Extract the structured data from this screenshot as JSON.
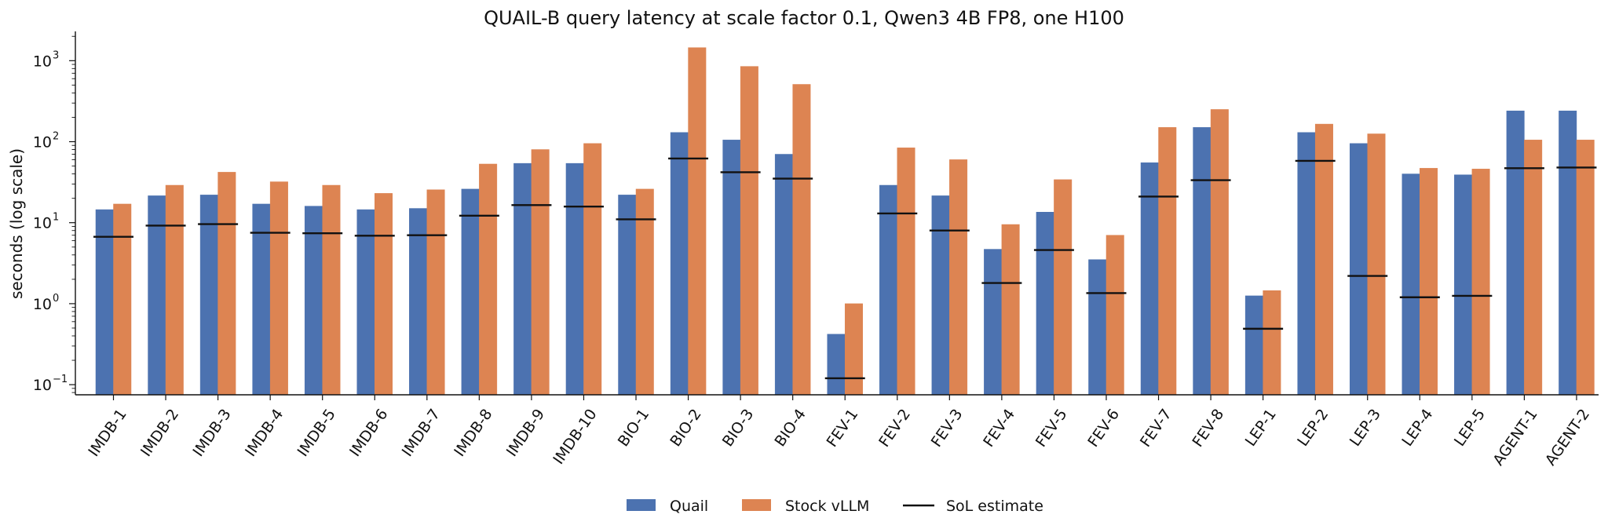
{
  "chart_data": {
    "type": "bar",
    "title": "QUAIL-B query latency at scale factor 0.1, Qwen3 4B FP8, one H100",
    "xlabel": "",
    "ylabel": "seconds (log scale)",
    "yscale": "log",
    "ylim": [
      0.075,
      2300
    ],
    "yticks": [
      {
        "value": 0.1,
        "base": "10",
        "exp": "−1"
      },
      {
        "value": 1,
        "base": "10",
        "exp": "0"
      },
      {
        "value": 10,
        "base": "10",
        "exp": "1"
      },
      {
        "value": 100,
        "base": "10",
        "exp": "2"
      },
      {
        "value": 1000,
        "base": "10",
        "exp": "3"
      }
    ],
    "categories": [
      "IMDB-1",
      "IMDB-2",
      "IMDB-3",
      "IMDB-4",
      "IMDB-5",
      "IMDB-6",
      "IMDB-7",
      "IMDB-8",
      "IMDB-9",
      "IMDB-10",
      "BIO-1",
      "BIO-2",
      "BIO-3",
      "BIO-4",
      "FEV-1",
      "FEV-2",
      "FEV-3",
      "FEV-4",
      "FEV-5",
      "FEV-6",
      "FEV-7",
      "FEV-8",
      "LEP-1",
      "LEP-2",
      "LEP-3",
      "LEP-4",
      "LEP-5",
      "AGENT-1",
      "AGENT-2"
    ],
    "series": [
      {
        "name": "Quail",
        "color": "#4c72b0",
        "values": [
          14.5,
          21.5,
          22,
          17,
          16,
          14.5,
          15,
          26,
          54,
          54,
          22,
          130,
          105,
          70,
          0.42,
          29,
          21.5,
          4.7,
          13.5,
          3.5,
          55,
          150,
          1.25,
          130,
          95,
          40,
          39,
          240,
          240
        ]
      },
      {
        "name": "Stock vLLM",
        "color": "#dd8452",
        "values": [
          17,
          29,
          42,
          32,
          29,
          23,
          25.5,
          53,
          80,
          95,
          26,
          1450,
          850,
          510,
          1.0,
          84,
          60,
          9.5,
          34,
          7,
          150,
          250,
          1.45,
          165,
          125,
          47,
          46,
          105,
          105
        ]
      }
    ],
    "sol_estimate": {
      "name": "SoL estimate",
      "color": "#111111",
      "values": [
        6.7,
        9.2,
        9.6,
        7.5,
        7.4,
        6.9,
        7.0,
        12.2,
        16.5,
        15.8,
        11.0,
        62,
        42,
        35,
        0.12,
        13.0,
        8.0,
        1.8,
        4.6,
        1.35,
        21,
        33.5,
        0.49,
        58,
        2.2,
        1.2,
        1.25,
        47,
        48
      ]
    },
    "grid": false,
    "legend_position": "bottom-center"
  }
}
